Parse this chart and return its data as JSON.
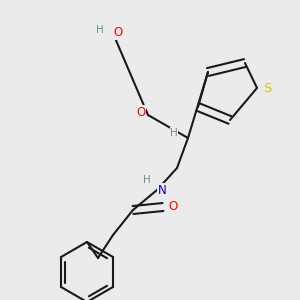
{
  "bg_color": "#ebebeb",
  "bond_color": "#1a1a1a",
  "bond_width": 1.5,
  "atom_colors": {
    "O": "#ff0000",
    "N": "#0000cc",
    "S": "#cccc00",
    "H": "#6a9090",
    "C": "#1a1a1a"
  },
  "font_size": 8.5,
  "fig_size": [
    3.0,
    3.0
  ],
  "dpi": 100
}
